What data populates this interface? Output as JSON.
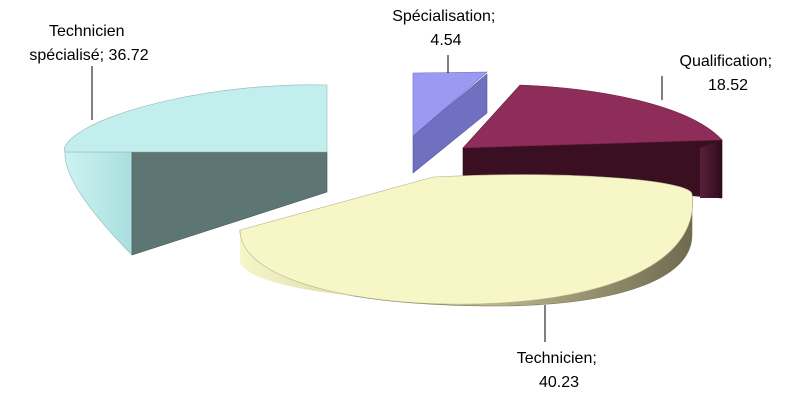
{
  "chart_data": {
    "type": "pie",
    "style": "3d-exploded",
    "title": "",
    "slices": [
      {
        "label": "Spécialisation",
        "value": 4.54,
        "color": "#9999ff",
        "label_text": [
          "Spécialisation;",
          "4.54"
        ]
      },
      {
        "label": "Qualification",
        "value": 18.52,
        "color": "#993366",
        "label_text": [
          "Qualification;",
          "18.52"
        ]
      },
      {
        "label": "Technicien",
        "value": 40.23,
        "color": "#ffffcc",
        "label_text": [
          "Technicien;",
          "40.23"
        ]
      },
      {
        "label": "Technicien spécialisé",
        "value": 36.72,
        "color": "#ccffff",
        "label_text": [
          "Technicien",
          "spécialisé; 36.72"
        ]
      }
    ]
  }
}
